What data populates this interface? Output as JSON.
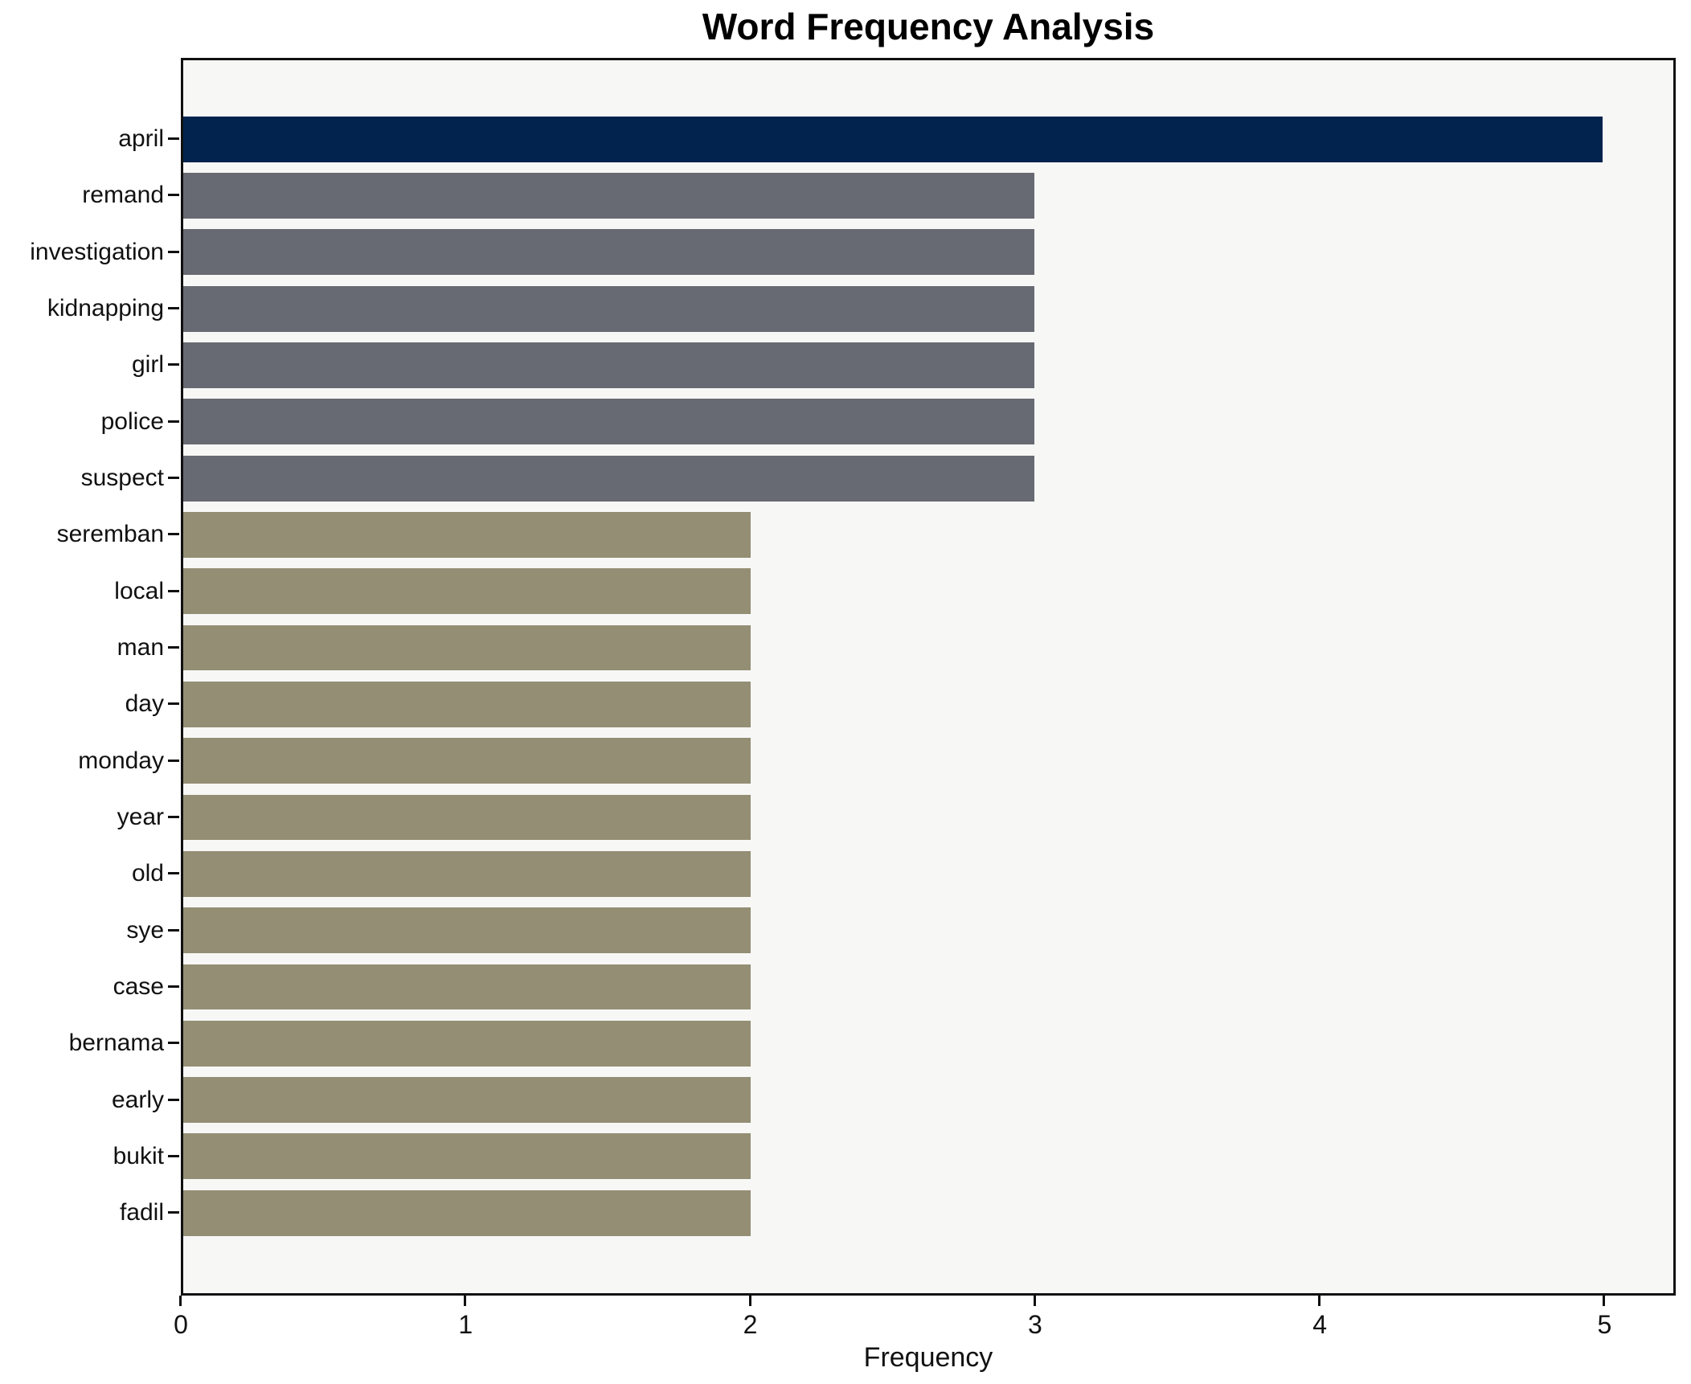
{
  "figure": {
    "title": "Word Frequency Analysis",
    "xlabel": "Frequency"
  },
  "chart_data": {
    "type": "bar",
    "orientation": "horizontal",
    "title": "Word Frequency Analysis",
    "xlabel": "Frequency",
    "ylabel": "",
    "grid": false,
    "legend": null,
    "xlim": [
      0,
      5.25
    ],
    "xticks": [
      0,
      1,
      2,
      3,
      4,
      5
    ],
    "xtick_labels": [
      "0",
      "1",
      "2",
      "3",
      "4",
      "5"
    ],
    "categories": [
      "april",
      "remand",
      "investigation",
      "kidnapping",
      "girl",
      "police",
      "suspect",
      "seremban",
      "local",
      "man",
      "day",
      "monday",
      "year",
      "old",
      "sye",
      "case",
      "bernama",
      "early",
      "bukit",
      "fadil"
    ],
    "values": [
      5,
      3,
      3,
      3,
      3,
      3,
      3,
      2,
      2,
      2,
      2,
      2,
      2,
      2,
      2,
      2,
      2,
      2,
      2,
      2
    ],
    "bar_colors": [
      "#02234e",
      "#676a72",
      "#676a72",
      "#676a72",
      "#676a72",
      "#676a72",
      "#676a72",
      "#948e74",
      "#948e74",
      "#948e74",
      "#948e74",
      "#948e74",
      "#948e74",
      "#948e74",
      "#948e74",
      "#948e74",
      "#948e74",
      "#948e74",
      "#948e74",
      "#948e74"
    ],
    "colors": {
      "highlight_bar": "#02234e",
      "mid_bar": "#676a72",
      "low_bar": "#948e74",
      "plot_background": "#f7f7f6",
      "figure_background": "#ffffff",
      "spine": "#101010",
      "text": "#111111"
    }
  }
}
